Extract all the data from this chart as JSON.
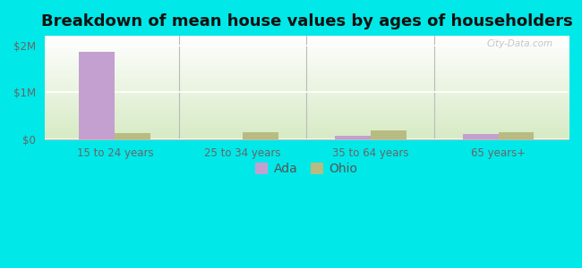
{
  "title": "Breakdown of mean house values by ages of householders",
  "categories": [
    "15 to 24 years",
    "25 to 34 years",
    "35 to 64 years",
    "65 years+"
  ],
  "ada_values": [
    1850000,
    0,
    65000,
    110000
  ],
  "ohio_values": [
    120000,
    155000,
    175000,
    150000
  ],
  "ada_color": "#c4a0d0",
  "ohio_color": "#b8bc82",
  "bar_width": 0.28,
  "yticks": [
    0,
    1000000,
    2000000
  ],
  "ytick_labels": [
    "$0",
    "$1M",
    "$2M"
  ],
  "ylim": [
    0,
    2200000
  ],
  "watermark": "City-Data.com",
  "legend_labels": [
    "Ada",
    "Ohio"
  ],
  "figure_facecolor": "#00e8e8",
  "plot_bg_top": "#ffffff",
  "plot_bg_bottom": "#d8ecc8",
  "title_fontsize": 13,
  "axis_label_fontsize": 8.5,
  "legend_fontsize": 10,
  "tick_color": "#666666"
}
